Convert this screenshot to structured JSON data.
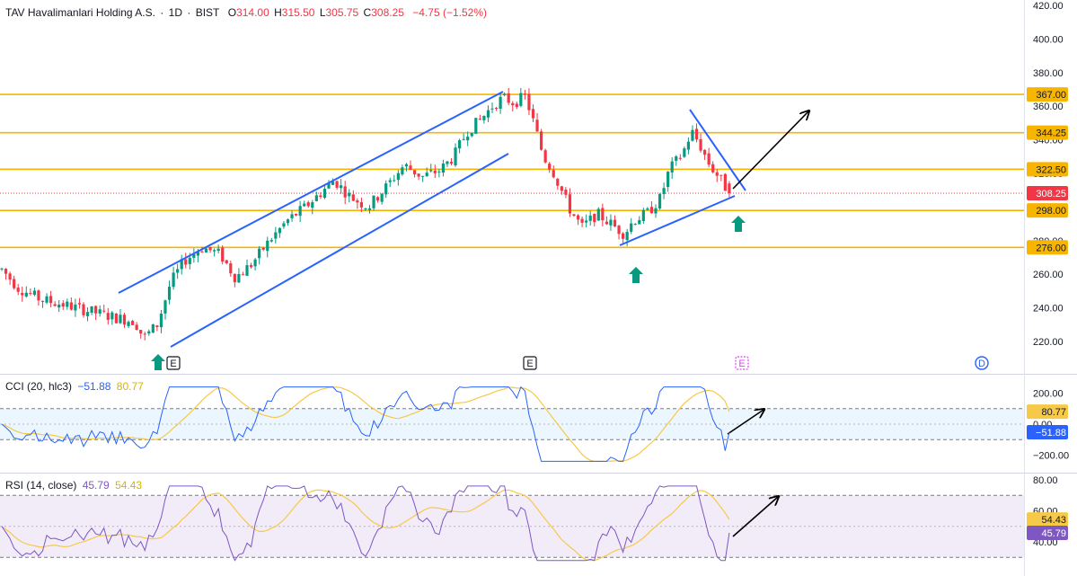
{
  "header": {
    "symbol": "TAV Havalimanlari Holding A.S.",
    "interval": "1D",
    "exchange": "BIST",
    "open_label": "O",
    "open": "314.00",
    "high_label": "H",
    "high": "315.50",
    "low_label": "L",
    "low": "305.75",
    "close_label": "C",
    "close": "308.25",
    "change": "−4.75 (−1.52%)"
  },
  "colors": {
    "up": "#089981",
    "down": "#f23645",
    "level": "#f7b500",
    "trend": "#2962ff",
    "cci": "#2962ff",
    "cci_ma": "#f7c948",
    "rsi": "#7e57c2",
    "rsi_ma": "#f7c948",
    "arrow": "#000000",
    "marker": "#089981"
  },
  "chart_data": [
    {
      "type": "candlestick",
      "title": "TAV Havalimanlari Holding A.S. · 1D · BIST",
      "ylim": [
        206,
        422
      ],
      "y_ticks": [
        "420.00",
        "400.00",
        "380.00",
        "360.00",
        "340.00",
        "320.00",
        "300.00",
        "280.00",
        "260.00",
        "240.00",
        "220.00"
      ],
      "y_tick_values": [
        420,
        400,
        380,
        360,
        340,
        320,
        300,
        280,
        260,
        240,
        220
      ],
      "last_price": "308.25",
      "horizontal_levels": [
        {
          "value": 367.0,
          "label": "367.00"
        },
        {
          "value": 344.25,
          "label": "344.25"
        },
        {
          "value": 322.5,
          "label": "322.50"
        },
        {
          "value": 298.0,
          "label": "298.00"
        },
        {
          "value": 276.0,
          "label": "276.00"
        }
      ],
      "events": [
        {
          "label": "E",
          "kind": "earnings"
        },
        {
          "label": "E",
          "kind": "earnings"
        },
        {
          "label": "E",
          "kind": "earnings-upcoming"
        },
        {
          "label": "D",
          "kind": "dividend"
        }
      ],
      "annotations": [
        "up-arrow-marker",
        "up-arrow-marker",
        "up-arrow-marker",
        "trend-arrow"
      ]
    },
    {
      "type": "line",
      "title": "CCI (20, hlc3)",
      "value": "−51.88",
      "ma_value": "80.77",
      "ylim": [
        -260,
        260
      ],
      "y_ticks": [
        "200.00",
        "0.00",
        "−200.00"
      ],
      "y_tick_values": [
        200,
        0,
        -200
      ],
      "band": [
        -100,
        100
      ],
      "markers": [
        {
          "value": 80.77,
          "label": "80.77"
        },
        {
          "value": -51.88,
          "label": "−51.88"
        }
      ]
    },
    {
      "type": "line",
      "title": "RSI (14, close)",
      "value": "45.79",
      "ma_value": "54.43",
      "ylim": [
        26,
        84
      ],
      "y_ticks": [
        "80.00",
        "60.00",
        "40.00"
      ],
      "y_tick_values": [
        80,
        60,
        40
      ],
      "band": [
        30,
        70
      ],
      "markers": [
        {
          "value": 54.43,
          "label": "54.43"
        },
        {
          "value": 45.79,
          "label": "45.79"
        }
      ]
    }
  ]
}
